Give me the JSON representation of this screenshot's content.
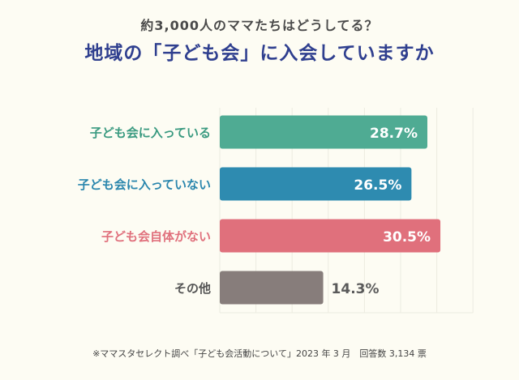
{
  "subtitle": "約3,000人のママたちはどうしてる？",
  "title": "地域の「子ども会」に入会していますか",
  "chart_data": {
    "type": "bar",
    "orientation": "horizontal",
    "categories": [
      "子ども会に入っている",
      "子ども会に入っていない",
      "子ども会自体がない",
      "その他"
    ],
    "values": [
      28.7,
      26.5,
      30.5,
      14.3
    ],
    "value_labels": [
      "28.7%",
      "26.5%",
      "30.5%",
      "14.3%"
    ],
    "colors": [
      "#4fab93",
      "#2e8bb0",
      "#e0707c",
      "#877d7b"
    ],
    "label_colors": [
      "#3a9a80",
      "#2a86ad",
      "#e0707c",
      "#555555"
    ],
    "xlim": [
      0,
      35
    ],
    "grid": true
  },
  "footnote": "※ママスタセレクト調べ「子ども会活動について」2023 年 3 月　回答数 3,134 票"
}
